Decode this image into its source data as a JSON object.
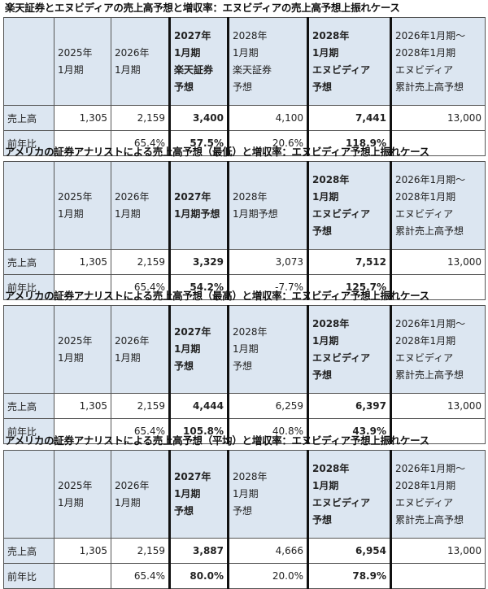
{
  "sections": [
    {
      "title": "楽天証券とエヌビディアの売上高予想と増収率：エヌビディアの売上高予想上振れケース",
      "headers": [
        "2025年\n1月期",
        "2026年\n1月期",
        "2027年\n1月期\n楽天証券\n予想",
        "2028年\n1月期\n楽天証券\n予想",
        "2028年\n1月期\nエヌビディア\n予想",
        "2026年1月期〜\n2028年1月期\nエヌビディア\n累計売上高予想"
      ],
      "row1_label": "売上高",
      "row1": [
        "1,305",
        "2,159",
        "3,400",
        "4,100",
        "7,441",
        "13,000"
      ],
      "row2_label": "前年比",
      "row2": [
        "",
        "65.4%",
        "57.5%",
        "20.6%",
        "118.9%",
        ""
      ]
    },
    {
      "title": "アメリカの証券アナリストによる売上高予想（最低）と増収率：エヌビディア予想上振れケース",
      "headers": [
        "2025年\n1月期",
        "2026年\n1月期",
        "2027年\n1月期予想",
        "2028年\n1月期予想",
        "2028年\n1月期\nエヌビディア\n予想",
        "2026年1月期〜\n2028年1月期\nエヌビディア\n累計売上高予想"
      ],
      "row1_label": "売上高",
      "row1": [
        "1,305",
        "2,159",
        "3,329",
        "3,073",
        "7,512",
        "13,000"
      ],
      "row2_label": "前年比",
      "row2": [
        "",
        "65.4%",
        "54.2%",
        "-7.7%",
        "125.7%",
        ""
      ]
    },
    {
      "title": "アメリカの証券アナリストによる売上高予想（最高）と増収率：エヌビディア予想上振れケース",
      "headers": [
        "2025年\n1月期",
        "2026年\n1月期",
        "2027年\n1月期\n予想",
        "2028年\n1月期\n予想",
        "2028年\n1月期\nエヌビディア\n予想",
        "2026年1月期〜\n2028年1月期\nエヌビディア\n累計売上高予想"
      ],
      "row1_label": "売上高",
      "row1": [
        "1,305",
        "2,159",
        "4,444",
        "6,259",
        "6,397",
        "13,000"
      ],
      "row2_label": "前年比",
      "row2": [
        "",
        "65.4%",
        "105.8%",
        "40.8%",
        "43.9%",
        ""
      ]
    },
    {
      "title": "アメリカの証券アナリストによる売上高予想（平均）と増収率：エヌビディア予想上振れケース",
      "headers": [
        "2025年\n1月期",
        "2026年\n1月期",
        "2027年\n1月期\n予想",
        "2028年\n1月期\n予想",
        "2028年\n1月期\nエヌビディア\n予想",
        "2026年1月期〜\n2028年1月期\nエヌビディア\n累計売上高予想"
      ],
      "row1_label": "売上高",
      "row1": [
        "1,305",
        "2,159",
        "3,887",
        "4,666",
        "6,954",
        "13,000"
      ],
      "row2_label": "前年比",
      "row2": [
        "",
        "65.4%",
        "80.0%",
        "20.0%",
        "78.9%",
        ""
      ]
    }
  ]
}
